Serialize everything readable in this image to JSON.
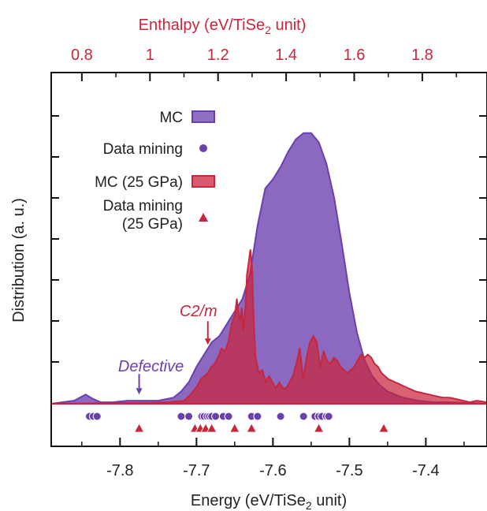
{
  "chart_data": {
    "type": "area",
    "xlabel_bottom": "Energy (eV/TiSe",
    "xlabel_bottom_sub": "2",
    "xlabel_bottom_tail": " unit)",
    "xlabel_top": "Enthalpy (eV/TiSe",
    "xlabel_top_sub": "2",
    "xlabel_top_tail": " unit)",
    "ylabel": "Distribution (a. u.)",
    "xlim_bottom": [
      -7.89,
      -7.32
    ],
    "xlim_top": [
      0.71,
      1.99
    ],
    "ylim": [
      0,
      1.0
    ],
    "grid": false,
    "legend_position": "top-left",
    "bottom_ticks": [
      {
        "value": -7.8,
        "label": "-7.8"
      },
      {
        "value": -7.7,
        "label": "-7.7"
      },
      {
        "value": -7.6,
        "label": "-7.6"
      },
      {
        "value": -7.5,
        "label": "-7.5"
      },
      {
        "value": -7.4,
        "label": "-7.4"
      }
    ],
    "top_ticks": [
      {
        "value": 0.8,
        "label": "0.8"
      },
      {
        "value": 1.0,
        "label": "1"
      },
      {
        "value": 1.2,
        "label": "1.2"
      },
      {
        "value": 1.4,
        "label": "1.4"
      },
      {
        "value": 1.6,
        "label": "1.6"
      },
      {
        "value": 1.8,
        "label": "1.8"
      }
    ],
    "series": [
      {
        "name": "MC",
        "color": "#6a3fae",
        "axis": "bottom",
        "x": [
          -7.89,
          -7.86,
          -7.845,
          -7.835,
          -7.825,
          -7.81,
          -7.79,
          -7.77,
          -7.75,
          -7.73,
          -7.72,
          -7.71,
          -7.7,
          -7.69,
          -7.68,
          -7.67,
          -7.66,
          -7.65,
          -7.64,
          -7.63,
          -7.62,
          -7.61,
          -7.6,
          -7.59,
          -7.58,
          -7.57,
          -7.56,
          -7.55,
          -7.54,
          -7.53,
          -7.52,
          -7.51,
          -7.5,
          -7.49,
          -7.48,
          -7.47,
          -7.46,
          -7.45,
          -7.43,
          -7.41,
          -7.39,
          -7.37,
          -7.35,
          -7.32
        ],
        "y": [
          0.0,
          0.01,
          0.03,
          0.015,
          0.005,
          0.005,
          0.01,
          0.01,
          0.01,
          0.02,
          0.04,
          0.07,
          0.12,
          0.16,
          0.2,
          0.22,
          0.26,
          0.3,
          0.34,
          0.42,
          0.58,
          0.7,
          0.73,
          0.77,
          0.82,
          0.86,
          0.88,
          0.88,
          0.85,
          0.78,
          0.67,
          0.52,
          0.36,
          0.23,
          0.14,
          0.09,
          0.06,
          0.04,
          0.02,
          0.01,
          0.005,
          0.005,
          0.003,
          0.0
        ]
      },
      {
        "name": "MC (25 GPa)",
        "color": "#c8263c",
        "axis": "top",
        "x": [
          0.71,
          0.9,
          1.0,
          1.05,
          1.1,
          1.12,
          1.14,
          1.15,
          1.16,
          1.17,
          1.18,
          1.19,
          1.2,
          1.21,
          1.22,
          1.23,
          1.24,
          1.25,
          1.255,
          1.26,
          1.265,
          1.27,
          1.275,
          1.28,
          1.285,
          1.29,
          1.295,
          1.3,
          1.305,
          1.31,
          1.32,
          1.33,
          1.34,
          1.35,
          1.36,
          1.37,
          1.38,
          1.39,
          1.4,
          1.41,
          1.42,
          1.43,
          1.44,
          1.45,
          1.46,
          1.47,
          1.48,
          1.49,
          1.5,
          1.51,
          1.52,
          1.53,
          1.54,
          1.55,
          1.56,
          1.57,
          1.58,
          1.59,
          1.6,
          1.61,
          1.62,
          1.63,
          1.64,
          1.65,
          1.66,
          1.67,
          1.68,
          1.69,
          1.7,
          1.72,
          1.74,
          1.76,
          1.78,
          1.8,
          1.82,
          1.84,
          1.86,
          1.88,
          1.9,
          1.92,
          1.94,
          1.96,
          1.99
        ],
        "y": [
          0.0,
          0.002,
          0.003,
          0.005,
          0.01,
          0.03,
          0.06,
          0.08,
          0.09,
          0.1,
          0.12,
          0.13,
          0.15,
          0.18,
          0.17,
          0.2,
          0.26,
          0.29,
          0.34,
          0.3,
          0.27,
          0.31,
          0.24,
          0.31,
          0.42,
          0.46,
          0.5,
          0.44,
          0.26,
          0.15,
          0.1,
          0.11,
          0.07,
          0.09,
          0.07,
          0.05,
          0.07,
          0.05,
          0.05,
          0.07,
          0.09,
          0.13,
          0.18,
          0.08,
          0.15,
          0.2,
          0.22,
          0.2,
          0.12,
          0.17,
          0.14,
          0.13,
          0.15,
          0.14,
          0.12,
          0.11,
          0.1,
          0.11,
          0.12,
          0.14,
          0.16,
          0.15,
          0.16,
          0.15,
          0.13,
          0.12,
          0.1,
          0.09,
          0.08,
          0.07,
          0.06,
          0.05,
          0.04,
          0.035,
          0.03,
          0.025,
          0.02,
          0.02,
          0.015,
          0.01,
          0.005,
          0.01,
          0.005
        ]
      }
    ],
    "markers": [
      {
        "name": "Data mining",
        "shape": "circle",
        "color": "#6a3fae",
        "axis": "bottom",
        "x": [
          -7.84,
          -7.835,
          -7.83,
          -7.72,
          -7.71,
          -7.693,
          -7.69,
          -7.686,
          -7.683,
          -7.68,
          -7.675,
          -7.665,
          -7.658,
          -7.628,
          -7.62,
          -7.59,
          -7.56,
          -7.545,
          -7.54,
          -7.536,
          -7.53,
          -7.527
        ]
      },
      {
        "name": "Data mining (25 GPa)",
        "shape": "triangle",
        "color": "#c8263c",
        "axis": "bottom",
        "x": [
          -7.775,
          -7.702,
          -7.695,
          -7.688,
          -7.68,
          -7.65,
          -7.628,
          -7.54,
          -7.455
        ]
      }
    ],
    "legend": [
      {
        "label": "MC",
        "kind": "box",
        "color": "#6a3fae"
      },
      {
        "label": "Data mining",
        "kind": "circle",
        "color": "#6a3fae"
      },
      {
        "label": "MC (25 GPa)",
        "kind": "box",
        "color": "#c8263c"
      },
      {
        "label": "Data mining\n(25 GPa)",
        "kind": "triangle",
        "color": "#c8263c"
      }
    ],
    "annotations": [
      {
        "text": "Defective",
        "color": "#6a3fae",
        "axis": "bottom",
        "x": -7.775,
        "y": 0.02
      },
      {
        "text": "C2/m",
        "color": "#c8263c",
        "axis": "top",
        "x": 1.17,
        "y": 0.12
      }
    ]
  }
}
